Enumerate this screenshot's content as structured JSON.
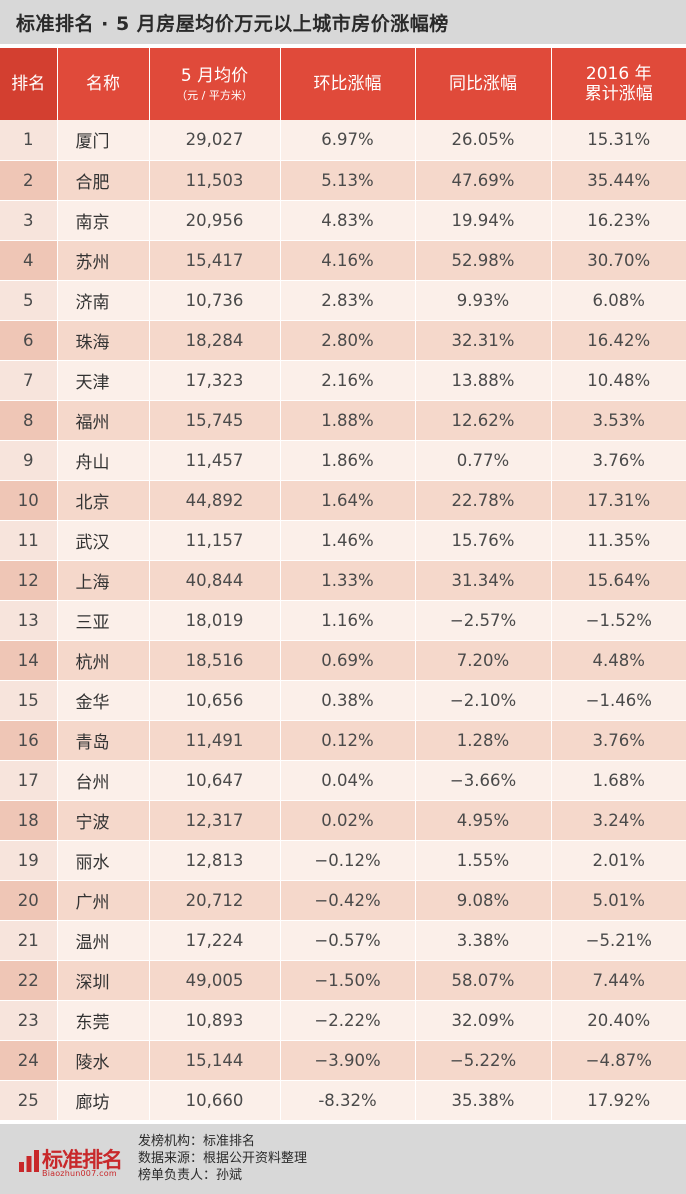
{
  "title": "标准排名 · 5 月房屋均价万元以上城市房价涨幅榜",
  "headers": {
    "rank": "排名",
    "name": "名称",
    "price": "5 月均价",
    "price_unit": "（元 / 平方米）",
    "mom": "环比涨幅",
    "yoy": "同比涨幅",
    "ytd_line1": "2016 年",
    "ytd_line2": "累计涨幅"
  },
  "rows": [
    {
      "rank": "1",
      "name": "厦门",
      "price": "29,027",
      "mom": "6.97%",
      "yoy": "26.05%",
      "ytd": "15.31%"
    },
    {
      "rank": "2",
      "name": "合肥",
      "price": "11,503",
      "mom": "5.13%",
      "yoy": "47.69%",
      "ytd": "35.44%"
    },
    {
      "rank": "3",
      "name": "南京",
      "price": "20,956",
      "mom": "4.83%",
      "yoy": "19.94%",
      "ytd": "16.23%"
    },
    {
      "rank": "4",
      "name": "苏州",
      "price": "15,417",
      "mom": "4.16%",
      "yoy": "52.98%",
      "ytd": "30.70%"
    },
    {
      "rank": "5",
      "name": "济南",
      "price": "10,736",
      "mom": "2.83%",
      "yoy": "9.93%",
      "ytd": "6.08%"
    },
    {
      "rank": "6",
      "name": "珠海",
      "price": "18,284",
      "mom": "2.80%",
      "yoy": "32.31%",
      "ytd": "16.42%"
    },
    {
      "rank": "7",
      "name": "天津",
      "price": "17,323",
      "mom": "2.16%",
      "yoy": "13.88%",
      "ytd": "10.48%"
    },
    {
      "rank": "8",
      "name": "福州",
      "price": "15,745",
      "mom": "1.88%",
      "yoy": "12.62%",
      "ytd": "3.53%"
    },
    {
      "rank": "9",
      "name": "舟山",
      "price": "11,457",
      "mom": "1.86%",
      "yoy": "0.77%",
      "ytd": "3.76%"
    },
    {
      "rank": "10",
      "name": "北京",
      "price": "44,892",
      "mom": "1.64%",
      "yoy": "22.78%",
      "ytd": "17.31%"
    },
    {
      "rank": "11",
      "name": "武汉",
      "price": "11,157",
      "mom": "1.46%",
      "yoy": "15.76%",
      "ytd": "11.35%"
    },
    {
      "rank": "12",
      "name": "上海",
      "price": "40,844",
      "mom": "1.33%",
      "yoy": "31.34%",
      "ytd": "15.64%"
    },
    {
      "rank": "13",
      "name": "三亚",
      "price": "18,019",
      "mom": "1.16%",
      "yoy": "−2.57%",
      "ytd": "−1.52%"
    },
    {
      "rank": "14",
      "name": "杭州",
      "price": "18,516",
      "mom": "0.69%",
      "yoy": "7.20%",
      "ytd": "4.48%"
    },
    {
      "rank": "15",
      "name": "金华",
      "price": "10,656",
      "mom": "0.38%",
      "yoy": "−2.10%",
      "ytd": "−1.46%"
    },
    {
      "rank": "16",
      "name": "青岛",
      "price": "11,491",
      "mom": "0.12%",
      "yoy": "1.28%",
      "ytd": "3.76%"
    },
    {
      "rank": "17",
      "name": "台州",
      "price": "10,647",
      "mom": "0.04%",
      "yoy": "−3.66%",
      "ytd": "1.68%"
    },
    {
      "rank": "18",
      "name": "宁波",
      "price": "12,317",
      "mom": "0.02%",
      "yoy": "4.95%",
      "ytd": "3.24%"
    },
    {
      "rank": "19",
      "name": "丽水",
      "price": "12,813",
      "mom": "−0.12%",
      "yoy": "1.55%",
      "ytd": "2.01%"
    },
    {
      "rank": "20",
      "name": "广州",
      "price": "20,712",
      "mom": "−0.42%",
      "yoy": "9.08%",
      "ytd": "5.01%"
    },
    {
      "rank": "21",
      "name": "温州",
      "price": "17,224",
      "mom": "−0.57%",
      "yoy": "3.38%",
      "ytd": "−5.21%"
    },
    {
      "rank": "22",
      "name": "深圳",
      "price": "49,005",
      "mom": "−1.50%",
      "yoy": "58.07%",
      "ytd": "7.44%"
    },
    {
      "rank": "23",
      "name": "东莞",
      "price": "10,893",
      "mom": "−2.22%",
      "yoy": "32.09%",
      "ytd": "20.40%"
    },
    {
      "rank": "24",
      "name": "陵水",
      "price": "15,144",
      "mom": "−3.90%",
      "yoy": "−5.22%",
      "ytd": "−4.87%"
    },
    {
      "rank": "25",
      "name": "廊坊",
      "price": "10,660",
      "mom": "-8.32%",
      "yoy": "35.38%",
      "ytd": "17.92%"
    }
  ],
  "footer": {
    "logo_text": "标准排名",
    "logo_url": "Biaozhun007.com",
    "lines": [
      {
        "label": "发榜机构：",
        "value": "标准排名"
      },
      {
        "label": "数据来源：",
        "value": "根据公开资料整理"
      },
      {
        "label": "榜单负责人：",
        "value": "孙斌"
      }
    ]
  },
  "colors": {
    "header_red": "#e04a3a",
    "row_light": "#fbefe9",
    "row_dark": "#f5d8cb",
    "logo_red": "#c8282a"
  }
}
